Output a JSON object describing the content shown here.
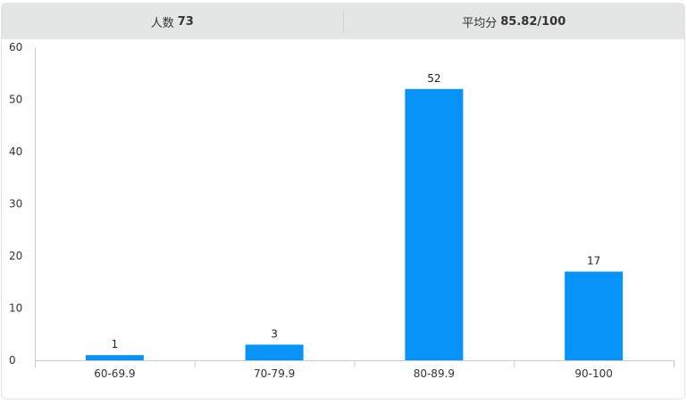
{
  "header": {
    "count_label": "人数",
    "count_value": "73",
    "avg_label": "平均分",
    "avg_value": "85.82/100"
  },
  "colors": {
    "bar": "#0893f8",
    "header_bg": "#e4e6e6"
  },
  "chart_data": {
    "type": "bar",
    "categories": [
      "60-69.9",
      "70-79.9",
      "80-89.9",
      "90-100"
    ],
    "values": [
      1,
      3,
      52,
      17
    ],
    "ylim": [
      0,
      60
    ],
    "yticks": [
      0,
      10,
      20,
      30,
      40,
      50,
      60
    ],
    "data_labels": true,
    "grid": false
  }
}
